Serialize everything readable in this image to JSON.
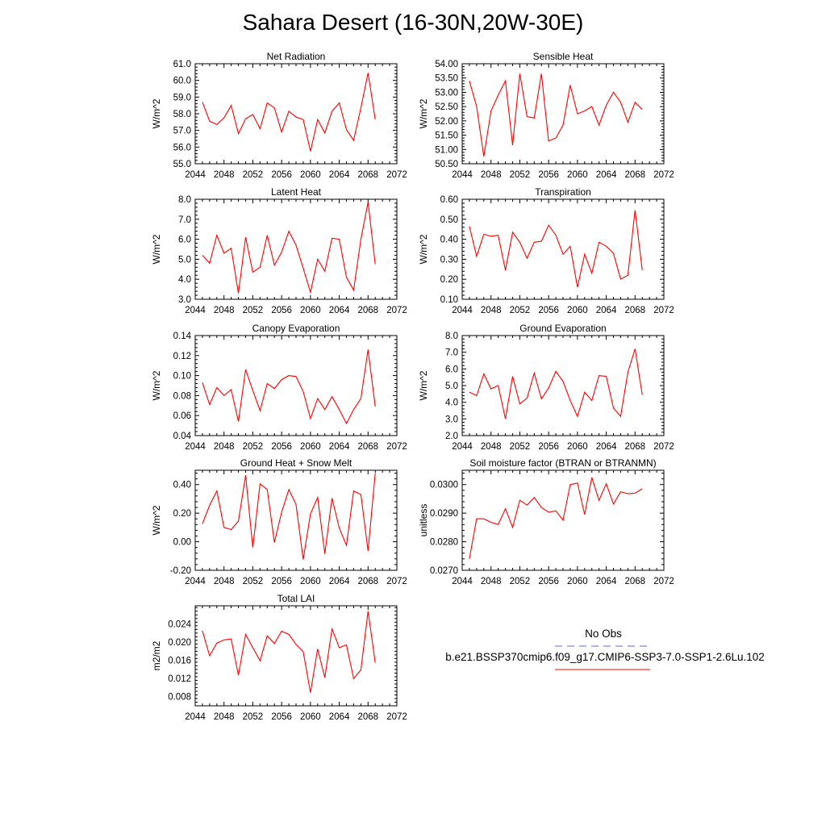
{
  "title": "Sahara Desert (16-30N,20W-30E)",
  "legend": {
    "obs_label": "No Obs",
    "obs_color": "#6666cc",
    "case_label": "b.e21.BSSP370cmip6.f09_g17.CMIP6-SSP3-7.0-SSP1-2.6Lu.102",
    "case_color": "#ff0000"
  },
  "x_ticks": [
    "2044",
    "2048",
    "2052",
    "2056",
    "2060",
    "2064",
    "2068",
    "2072"
  ],
  "chart_data": [
    {
      "type": "line",
      "title": "Net Radiation",
      "ylabel": "W/m^2",
      "xlim": [
        2044,
        2072
      ],
      "ylim": [
        55.0,
        61.0
      ],
      "yticks": [
        "55.0",
        "56.0",
        "57.0",
        "58.0",
        "59.0",
        "60.0",
        "61.0"
      ],
      "x": [
        2045,
        2046,
        2047,
        2048,
        2049,
        2050,
        2051,
        2052,
        2053,
        2054,
        2055,
        2056,
        2057,
        2058,
        2059,
        2060,
        2061,
        2062,
        2063,
        2064,
        2065,
        2066,
        2067,
        2068,
        2069
      ],
      "series": [
        {
          "values": [
            58.7,
            57.55,
            57.35,
            57.75,
            58.5,
            56.8,
            57.7,
            57.95,
            57.1,
            58.65,
            58.35,
            56.9,
            58.15,
            57.8,
            57.65,
            55.75,
            57.65,
            56.85,
            58.15,
            58.65,
            57.05,
            56.4,
            58.35,
            60.45,
            57.65
          ],
          "color": "#ff0000"
        }
      ]
    },
    {
      "type": "line",
      "title": "Sensible Heat",
      "ylabel": "W/m^2",
      "xlim": [
        2044,
        2072
      ],
      "ylim": [
        50.5,
        54.0
      ],
      "yticks": [
        "50.50",
        "51.00",
        "51.50",
        "52.00",
        "52.50",
        "53.00",
        "53.50",
        "54.00"
      ],
      "x": [
        2045,
        2046,
        2047,
        2048,
        2049,
        2050,
        2051,
        2052,
        2053,
        2054,
        2055,
        2056,
        2057,
        2058,
        2059,
        2060,
        2061,
        2062,
        2063,
        2064,
        2065,
        2066,
        2067,
        2068,
        2069
      ],
      "series": [
        {
          "values": [
            53.4,
            52.5,
            50.75,
            52.35,
            52.9,
            53.4,
            51.15,
            53.65,
            52.15,
            52.1,
            53.65,
            51.3,
            51.4,
            51.85,
            53.25,
            52.25,
            52.35,
            52.5,
            51.85,
            52.55,
            53.0,
            52.65,
            51.95,
            52.65,
            52.4
          ],
          "color": "#ff0000"
        }
      ]
    },
    {
      "type": "line",
      "title": "Latent Heat",
      "ylabel": "W/m^2",
      "xlim": [
        2044,
        2072
      ],
      "ylim": [
        3.0,
        8.0
      ],
      "yticks": [
        "3.0",
        "4.0",
        "5.0",
        "6.0",
        "7.0",
        "8.0"
      ],
      "x": [
        2045,
        2046,
        2047,
        2048,
        2049,
        2050,
        2051,
        2052,
        2053,
        2054,
        2055,
        2056,
        2057,
        2058,
        2059,
        2060,
        2061,
        2062,
        2063,
        2064,
        2065,
        2066,
        2067,
        2068,
        2069
      ],
      "series": [
        {
          "values": [
            5.2,
            4.8,
            6.2,
            5.3,
            5.55,
            3.3,
            6.1,
            4.35,
            4.6,
            6.2,
            4.7,
            5.35,
            6.4,
            5.7,
            4.55,
            3.35,
            5.0,
            4.4,
            6.05,
            6.0,
            4.1,
            3.45,
            6.0,
            7.85,
            4.75
          ],
          "color": "#ff0000"
        }
      ]
    },
    {
      "type": "line",
      "title": "Transpiration",
      "ylabel": "W/m^2",
      "xlim": [
        2044,
        2072
      ],
      "ylim": [
        0.1,
        0.6
      ],
      "yticks": [
        "0.10",
        "0.20",
        "0.30",
        "0.40",
        "0.50",
        "0.60"
      ],
      "x": [
        2045,
        2046,
        2047,
        2048,
        2049,
        2050,
        2051,
        2052,
        2053,
        2054,
        2055,
        2056,
        2057,
        2058,
        2059,
        2060,
        2061,
        2062,
        2063,
        2064,
        2065,
        2066,
        2067,
        2068,
        2069
      ],
      "series": [
        {
          "values": [
            0.465,
            0.315,
            0.425,
            0.415,
            0.42,
            0.245,
            0.435,
            0.385,
            0.305,
            0.385,
            0.39,
            0.47,
            0.42,
            0.325,
            0.365,
            0.16,
            0.325,
            0.23,
            0.385,
            0.365,
            0.33,
            0.2,
            0.22,
            0.545,
            0.245
          ],
          "color": "#ff0000"
        }
      ]
    },
    {
      "type": "line",
      "title": "Canopy Evaporation",
      "ylabel": "W/m^2",
      "xlim": [
        2044,
        2072
      ],
      "ylim": [
        0.04,
        0.14
      ],
      "yticks": [
        "0.04",
        "0.06",
        "0.08",
        "0.10",
        "0.12",
        "0.14"
      ],
      "x": [
        2045,
        2046,
        2047,
        2048,
        2049,
        2050,
        2051,
        2052,
        2053,
        2054,
        2055,
        2056,
        2057,
        2058,
        2059,
        2060,
        2061,
        2062,
        2063,
        2064,
        2065,
        2066,
        2067,
        2068,
        2069
      ],
      "series": [
        {
          "values": [
            0.093,
            0.071,
            0.088,
            0.08,
            0.086,
            0.054,
            0.106,
            0.085,
            0.065,
            0.092,
            0.087,
            0.096,
            0.1,
            0.099,
            0.084,
            0.057,
            0.077,
            0.066,
            0.079,
            0.066,
            0.052,
            0.066,
            0.077,
            0.126,
            0.069
          ],
          "color": "#ff0000"
        }
      ]
    },
    {
      "type": "line",
      "title": "Ground Evaporation",
      "ylabel": "W/m^2",
      "xlim": [
        2044,
        2072
      ],
      "ylim": [
        2.0,
        8.0
      ],
      "yticks": [
        "2.0",
        "3.0",
        "4.0",
        "5.0",
        "6.0",
        "7.0",
        "8.0"
      ],
      "x": [
        2045,
        2046,
        2047,
        2048,
        2049,
        2050,
        2051,
        2052,
        2053,
        2054,
        2055,
        2056,
        2057,
        2058,
        2059,
        2060,
        2061,
        2062,
        2063,
        2064,
        2065,
        2066,
        2067,
        2068,
        2069
      ],
      "series": [
        {
          "values": [
            4.6,
            4.4,
            5.7,
            4.8,
            5.0,
            3.0,
            5.55,
            3.9,
            4.25,
            5.75,
            4.2,
            4.85,
            5.85,
            5.25,
            4.1,
            3.15,
            4.6,
            4.1,
            5.6,
            5.55,
            3.65,
            3.15,
            5.8,
            7.2,
            4.45
          ],
          "color": "#ff0000"
        }
      ]
    },
    {
      "type": "line",
      "title": "Ground Heat + Snow Melt",
      "ylabel": "W/m^2",
      "xlim": [
        2044,
        2072
      ],
      "ylim": [
        -0.2,
        0.5
      ],
      "yticks": [
        "-0.20",
        "0.00",
        "0.20",
        "0.40"
      ],
      "x": [
        2045,
        2046,
        2047,
        2048,
        2049,
        2050,
        2051,
        2052,
        2053,
        2054,
        2055,
        2056,
        2057,
        2058,
        2059,
        2060,
        2061,
        2062,
        2063,
        2064,
        2065,
        2066,
        2067,
        2068,
        2069
      ],
      "series": [
        {
          "values": [
            0.125,
            0.255,
            0.355,
            0.1,
            0.085,
            0.145,
            0.465,
            -0.04,
            0.405,
            0.365,
            -0.005,
            0.205,
            0.365,
            0.26,
            -0.125,
            0.195,
            0.31,
            -0.085,
            0.305,
            0.095,
            -0.025,
            0.355,
            0.33,
            -0.065,
            0.48
          ],
          "color": "#ff0000"
        }
      ]
    },
    {
      "type": "line",
      "title": "Soil moisture factor (BTRAN or BTRANMN)",
      "ylabel": "unitless",
      "xlim": [
        2044,
        2072
      ],
      "ylim": [
        0.027,
        0.0305
      ],
      "yticks": [
        "0.0270",
        "0.0280",
        "0.0290",
        "0.0300"
      ],
      "x": [
        2045,
        2046,
        2047,
        2048,
        2049,
        2050,
        2051,
        2052,
        2053,
        2054,
        2055,
        2056,
        2057,
        2058,
        2059,
        2060,
        2061,
        2062,
        2063,
        2064,
        2065,
        2066,
        2067,
        2068,
        2069
      ],
      "series": [
        {
          "values": [
            0.0274,
            0.0288,
            0.0288,
            0.02868,
            0.0286,
            0.02915,
            0.0285,
            0.02945,
            0.02928,
            0.02955,
            0.0292,
            0.02903,
            0.02908,
            0.02875,
            0.03,
            0.03005,
            0.02895,
            0.03025,
            0.02945,
            0.03003,
            0.02932,
            0.02975,
            0.02968,
            0.0297,
            0.02985
          ],
          "color": "#ff0000"
        }
      ]
    },
    {
      "type": "line",
      "title": "Total LAI",
      "ylabel": "m2/m2",
      "xlim": [
        2044,
        2072
      ],
      "ylim": [
        0.006,
        0.028
      ],
      "yticks": [
        "0.008",
        "0.012",
        "0.016",
        "0.020",
        "0.024"
      ],
      "x": [
        2045,
        2046,
        2047,
        2048,
        2049,
        2050,
        2051,
        2052,
        2053,
        2054,
        2055,
        2056,
        2057,
        2058,
        2059,
        2060,
        2061,
        2062,
        2063,
        2064,
        2065,
        2066,
        2067,
        2068,
        2069
      ],
      "series": [
        {
          "values": [
            0.0225,
            0.017,
            0.0198,
            0.0205,
            0.0207,
            0.0127,
            0.0217,
            0.0188,
            0.0159,
            0.0214,
            0.0197,
            0.0224,
            0.0217,
            0.0195,
            0.0179,
            0.0089,
            0.0185,
            0.0122,
            0.0229,
            0.0188,
            0.0194,
            0.012,
            0.0139,
            0.0268,
            0.0155
          ],
          "color": "#ff0000"
        }
      ]
    }
  ]
}
